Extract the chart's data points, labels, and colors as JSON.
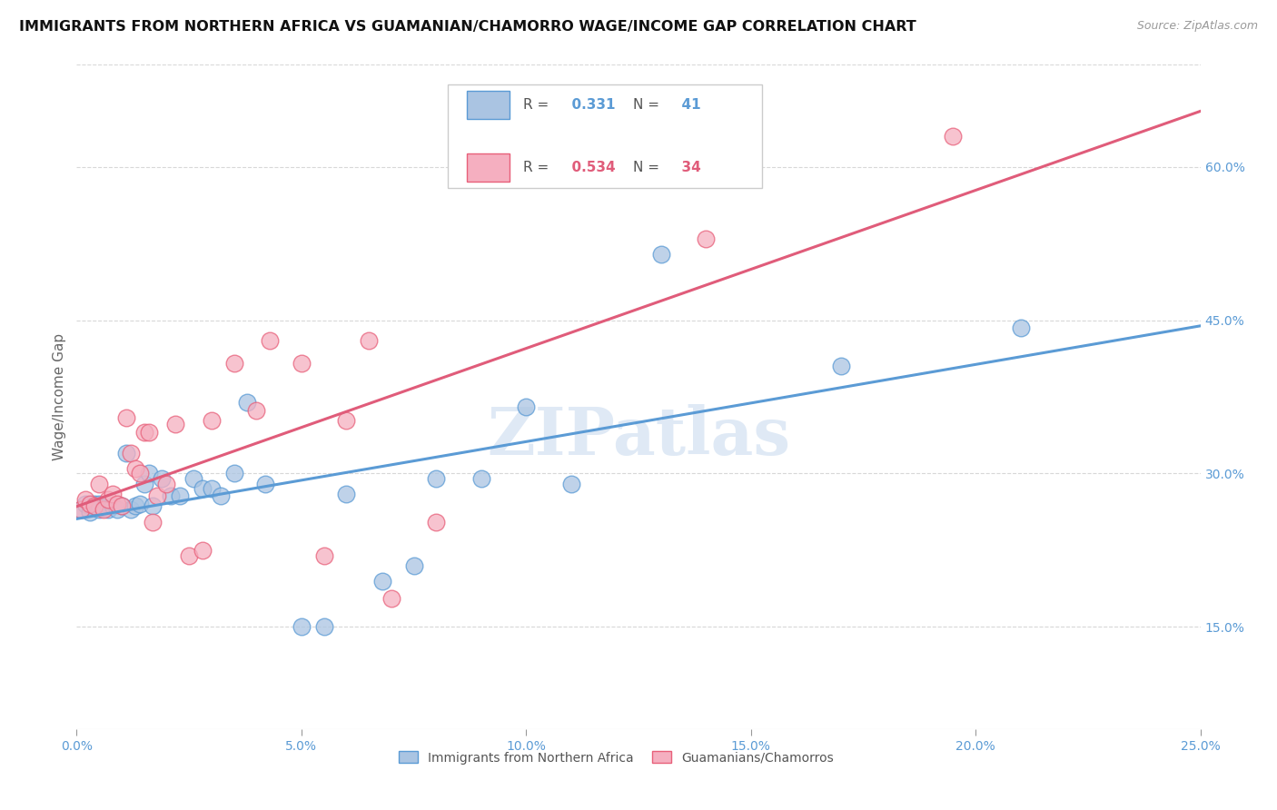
{
  "title": "IMMIGRANTS FROM NORTHERN AFRICA VS GUAMANIAN/CHAMORRO WAGE/INCOME GAP CORRELATION CHART",
  "source": "Source: ZipAtlas.com",
  "ylabel": "Wage/Income Gap",
  "xlim": [
    0.0,
    0.25
  ],
  "ylim": [
    0.05,
    0.7
  ],
  "xticks": [
    0.0,
    0.05,
    0.1,
    0.15,
    0.2,
    0.25
  ],
  "xtick_labels": [
    "0.0%",
    "5.0%",
    "10.0%",
    "15.0%",
    "20.0%",
    "25.0%"
  ],
  "ytick_vals": [
    0.15,
    0.3,
    0.45,
    0.6
  ],
  "ytick_labels": [
    "15.0%",
    "30.0%",
    "45.0%",
    "60.0%"
  ],
  "blue_R": 0.331,
  "blue_N": 41,
  "pink_R": 0.534,
  "pink_N": 34,
  "blue_color": "#aac4e2",
  "pink_color": "#f5afc0",
  "blue_edge_color": "#5b9bd5",
  "pink_edge_color": "#e8607a",
  "blue_line_color": "#5b9bd5",
  "pink_line_color": "#e05c7a",
  "blue_label": "Immigrants from Northern Africa",
  "pink_label": "Guamanians/Chamorros",
  "blue_scatter_x": [
    0.001,
    0.002,
    0.003,
    0.003,
    0.004,
    0.005,
    0.005,
    0.006,
    0.007,
    0.008,
    0.009,
    0.01,
    0.011,
    0.012,
    0.013,
    0.014,
    0.015,
    0.016,
    0.017,
    0.019,
    0.021,
    0.023,
    0.026,
    0.028,
    0.03,
    0.032,
    0.035,
    0.038,
    0.042,
    0.05,
    0.055,
    0.06,
    0.068,
    0.075,
    0.08,
    0.09,
    0.1,
    0.11,
    0.13,
    0.17,
    0.21
  ],
  "blue_scatter_y": [
    0.265,
    0.27,
    0.268,
    0.262,
    0.27,
    0.265,
    0.27,
    0.267,
    0.265,
    0.268,
    0.265,
    0.268,
    0.32,
    0.265,
    0.268,
    0.27,
    0.29,
    0.3,
    0.268,
    0.295,
    0.278,
    0.278,
    0.295,
    0.285,
    0.285,
    0.278,
    0.3,
    0.37,
    0.29,
    0.15,
    0.15,
    0.28,
    0.195,
    0.21,
    0.295,
    0.295,
    0.365,
    0.29,
    0.515,
    0.405,
    0.443
  ],
  "pink_scatter_x": [
    0.001,
    0.002,
    0.003,
    0.004,
    0.005,
    0.006,
    0.007,
    0.008,
    0.009,
    0.01,
    0.011,
    0.012,
    0.013,
    0.014,
    0.015,
    0.016,
    0.017,
    0.018,
    0.02,
    0.022,
    0.025,
    0.028,
    0.03,
    0.035,
    0.04,
    0.043,
    0.05,
    0.055,
    0.06,
    0.065,
    0.07,
    0.08,
    0.14,
    0.195
  ],
  "pink_scatter_y": [
    0.265,
    0.275,
    0.27,
    0.268,
    0.29,
    0.265,
    0.275,
    0.28,
    0.27,
    0.268,
    0.355,
    0.32,
    0.305,
    0.3,
    0.34,
    0.34,
    0.252,
    0.278,
    0.29,
    0.348,
    0.22,
    0.225,
    0.352,
    0.408,
    0.362,
    0.43,
    0.408,
    0.22,
    0.352,
    0.43,
    0.178,
    0.252,
    0.53,
    0.63
  ],
  "watermark": "ZIPatlas",
  "background_color": "#ffffff",
  "grid_color": "#d8d8d8"
}
